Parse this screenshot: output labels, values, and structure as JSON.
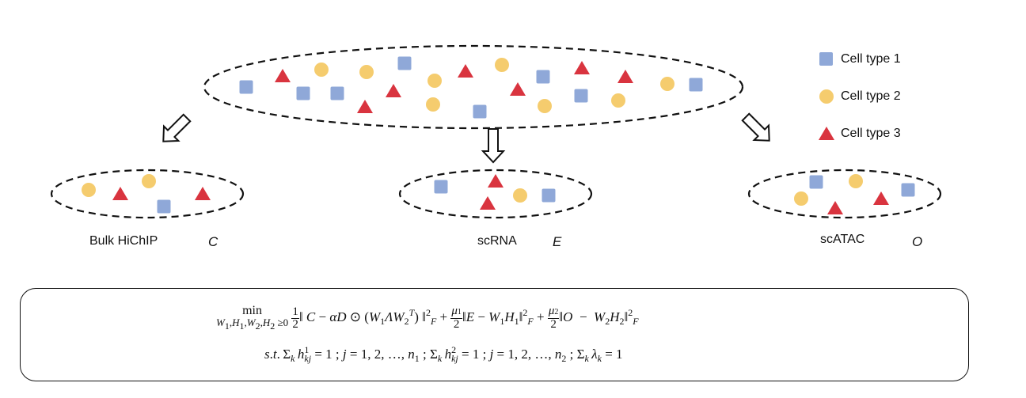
{
  "legend": {
    "items": [
      {
        "label": "Cell type 1",
        "shape": "square",
        "color": "#8fa8d8"
      },
      {
        "label": "Cell type 2",
        "shape": "circle",
        "color": "#f5cc6e"
      },
      {
        "label": "Cell type 3",
        "shape": "triangle",
        "color": "#d9343f"
      }
    ]
  },
  "samples": [
    {
      "name": "Bulk HiChIP",
      "symbol": "C"
    },
    {
      "name": "scRNA",
      "symbol": "E"
    },
    {
      "name": "scATAC",
      "symbol": "O"
    }
  ],
  "formula": {
    "objective_min": "min",
    "objective_under": "W₁,H₁,W₂,H₂ ≥0",
    "objective_body": "1/2 ‖ C − αD ⊙ (W₁ΛW₂ᵀ) ‖²_F + μ₁/2 ‖E − W₁H₁‖²_F + μ₂/2 ‖O − W₂H₂‖²_F",
    "constraints": "s.t. Σ_k h¹_kj = 1 ; j = 1, 2, …, n₁ ; Σ_k h²_kj = 1 ; j = 1, 2, …, n₂ ; Σ_k λ_k = 1"
  }
}
